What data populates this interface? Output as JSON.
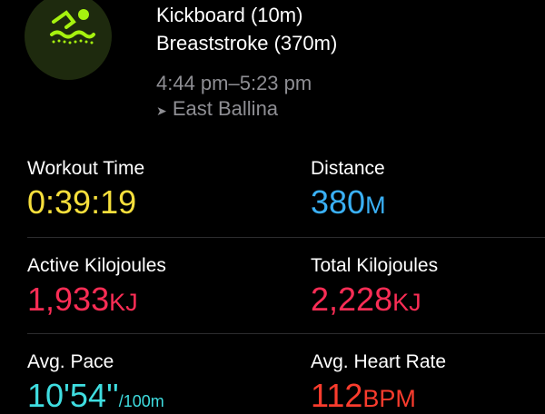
{
  "workout": {
    "icon": "swimming-icon",
    "accent": "#a6f20f",
    "segments": [
      "Kickboard (10m)",
      "Breaststroke (370m)"
    ],
    "time_range": "4:44 pm–5:23 pm",
    "location_icon": "location-arrow-icon",
    "location": "East Ballina"
  },
  "metrics": [
    {
      "label": "Workout Time",
      "value": "0:39:19",
      "unit": "",
      "color": "#f6df3c"
    },
    {
      "label": "Distance",
      "value": "380",
      "unit": "M",
      "color": "#3ab0f5"
    },
    {
      "label": "Active Kilojoules",
      "value": "1,933",
      "unit": "KJ",
      "color": "#fa2d55"
    },
    {
      "label": "Total Kilojoules",
      "value": "2,228",
      "unit": "KJ",
      "color": "#fa2d55"
    },
    {
      "label": "Avg. Pace",
      "value": "10'54''",
      "unit": "/100m",
      "color": "#3fdde0"
    },
    {
      "label": "Avg. Heart Rate",
      "value": "112",
      "unit": "BPM",
      "color": "#fa3c2d"
    }
  ]
}
